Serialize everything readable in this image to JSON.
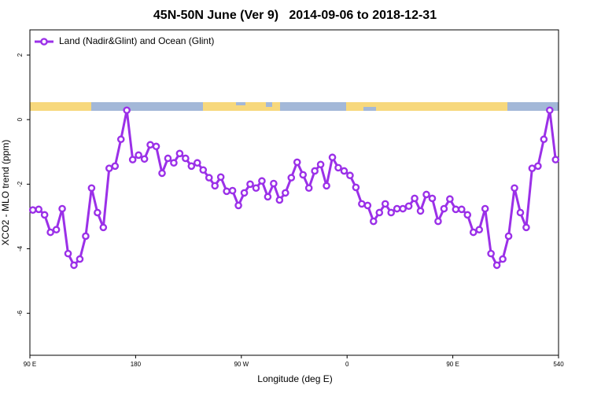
{
  "chart_data": {
    "type": "line",
    "title": "45N-50N June (Ver 9)   2014-09-06 to 2018-12-31",
    "xlabel": "Longitude (deg E)",
    "ylabel": "XCO2 - MLO trend (ppm)",
    "x": [
      92.5,
      97.5,
      102.5,
      107.5,
      112.5,
      117.5,
      122.5,
      127.5,
      132.5,
      137.5,
      142.5,
      147.5,
      152.5,
      157.5,
      162.5,
      167.5,
      172.5,
      177.5,
      182.5,
      187.5,
      192.5,
      197.5,
      202.5,
      207.5,
      212.5,
      217.5,
      222.5,
      227.5,
      232.5,
      237.5,
      242.5,
      247.5,
      252.5,
      257.5,
      262.5,
      267.5,
      272.5,
      277.5,
      282.5,
      287.5,
      292.5,
      297.5,
      302.5,
      307.5,
      312.5,
      317.5,
      322.5,
      327.5,
      332.5,
      337.5,
      342.5,
      347.5,
      352.5,
      357.5,
      362.5,
      367.5,
      372.5,
      377.5,
      382.5,
      387.5,
      392.5,
      397.5,
      402.5,
      407.5,
      412.5,
      417.5,
      422.5,
      427.5,
      432.5,
      437.5,
      442.5,
      447.5,
      452.5,
      457.5,
      462.5,
      467.5,
      472.5,
      477.5,
      482.5,
      487.5,
      492.5,
      497.5,
      502.5,
      507.5,
      512.5,
      517.5,
      522.5,
      527.5,
      532.5,
      537.5
    ],
    "series": [
      {
        "name": "Land (Nadir&Glint) and Ocean (Glint)",
        "color": "#9b30e8",
        "values": [
          -2.8,
          -2.78,
          -2.95,
          -3.49,
          -3.41,
          -2.76,
          -4.15,
          -4.51,
          -4.32,
          -3.61,
          -2.12,
          -2.88,
          -3.34,
          -1.51,
          -1.44,
          -0.61,
          0.29,
          -1.24,
          -1.1,
          -1.22,
          -0.78,
          -0.83,
          -1.66,
          -1.2,
          -1.34,
          -1.05,
          -1.2,
          -1.44,
          -1.34,
          -1.56,
          -1.8,
          -2.05,
          -1.78,
          -2.22,
          -2.2,
          -2.66,
          -2.27,
          -2.0,
          -2.12,
          -1.9,
          -2.39,
          -1.98,
          -2.49,
          -2.27,
          -1.8,
          -1.32,
          -1.71,
          -2.12,
          -1.59,
          -1.39,
          -2.05,
          -1.17,
          -1.49,
          -1.59,
          -1.73,
          -2.1,
          -2.61,
          -2.66,
          -3.15,
          -2.88,
          -2.61,
          -2.88,
          -2.76,
          -2.76,
          -2.68,
          -2.44,
          -2.83,
          -2.32,
          -2.44,
          -3.15,
          -2.76,
          -2.46,
          -2.78,
          -2.78,
          -2.95,
          -3.49,
          -3.41,
          -2.76,
          -4.15,
          -4.51,
          -4.32,
          -3.61,
          -2.12,
          -2.88,
          -3.34,
          -1.51,
          -1.44,
          -0.61,
          0.29,
          -1.24
        ]
      }
    ],
    "xlim": [
      90,
      540
    ],
    "xticks": [
      {
        "value": 90,
        "label": "90 E"
      },
      180,
      {
        "value": 270,
        "label": "90 W"
      },
      {
        "value": 360,
        "label": "0"
      },
      {
        "value": 450,
        "label": "90 E"
      },
      540
    ],
    "ylim": [
      -7.3,
      2.78
    ],
    "yticks": [
      -6,
      -4,
      -2,
      0,
      2
    ],
    "legend": "top-left"
  }
}
